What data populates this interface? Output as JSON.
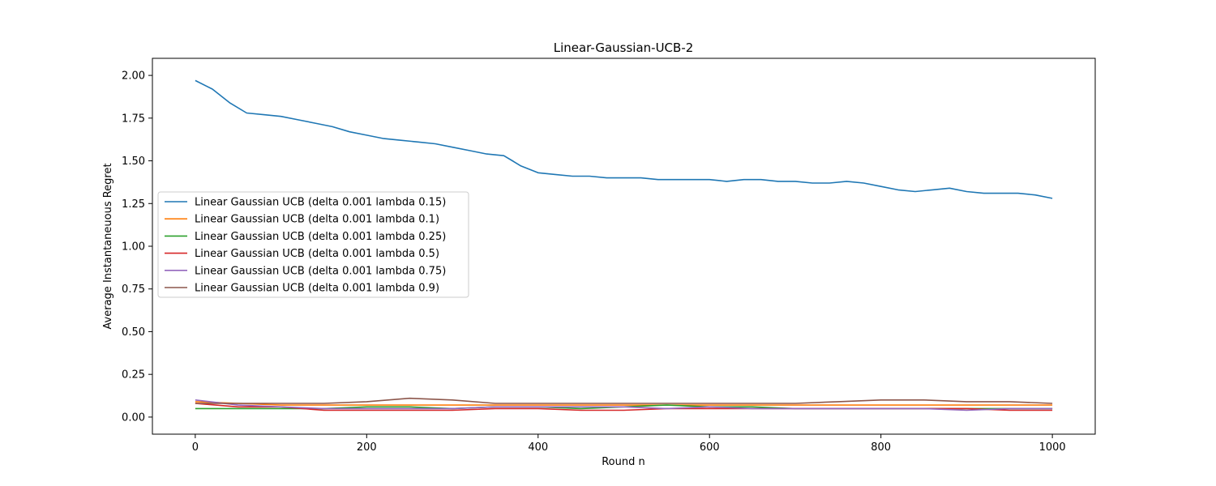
{
  "chart_data": {
    "type": "line",
    "title": "Linear-Gaussian-UCB-2",
    "xlabel": "Round n",
    "ylabel": "Average Instantaneuous Regret",
    "xlim": [
      -50,
      1050
    ],
    "ylim": [
      -0.1,
      2.1
    ],
    "xticks": [
      0,
      200,
      400,
      600,
      800,
      1000
    ],
    "yticks": [
      0.0,
      0.25,
      0.5,
      0.75,
      1.0,
      1.25,
      1.5,
      1.75,
      2.0
    ],
    "xtick_labels": [
      "0",
      "200",
      "400",
      "600",
      "800",
      "1000"
    ],
    "ytick_labels": [
      "0.00",
      "0.25",
      "0.50",
      "0.75",
      "1.00",
      "1.25",
      "1.50",
      "1.75",
      "2.00"
    ],
    "grid": false,
    "legend_position": "center-left",
    "series": [
      {
        "name": "Linear Gaussian UCB (delta 0.001 lambda 0.15)",
        "color": "#1f77b4",
        "x": [
          0,
          20,
          40,
          60,
          80,
          100,
          120,
          140,
          160,
          180,
          200,
          220,
          240,
          260,
          280,
          300,
          320,
          340,
          360,
          370,
          380,
          400,
          420,
          440,
          460,
          480,
          500,
          520,
          540,
          560,
          580,
          600,
          620,
          640,
          660,
          680,
          700,
          720,
          740,
          760,
          780,
          800,
          820,
          840,
          860,
          880,
          900,
          920,
          940,
          960,
          980,
          1000
        ],
        "y": [
          1.97,
          1.92,
          1.84,
          1.78,
          1.77,
          1.76,
          1.74,
          1.72,
          1.7,
          1.67,
          1.65,
          1.63,
          1.62,
          1.61,
          1.6,
          1.58,
          1.56,
          1.54,
          1.53,
          1.5,
          1.47,
          1.43,
          1.42,
          1.41,
          1.41,
          1.4,
          1.4,
          1.4,
          1.39,
          1.39,
          1.39,
          1.39,
          1.38,
          1.39,
          1.39,
          1.38,
          1.38,
          1.37,
          1.37,
          1.38,
          1.37,
          1.35,
          1.33,
          1.32,
          1.33,
          1.34,
          1.32,
          1.31,
          1.31,
          1.31,
          1.3,
          1.28
        ]
      },
      {
        "name": "Linear Gaussian UCB (delta 0.001 lambda 0.1)",
        "color": "#ff7f0e",
        "x": [
          0,
          50,
          100,
          150,
          200,
          250,
          300,
          350,
          400,
          450,
          500,
          550,
          600,
          650,
          700,
          750,
          800,
          850,
          900,
          950,
          1000
        ],
        "y": [
          0.09,
          0.08,
          0.07,
          0.07,
          0.07,
          0.07,
          0.07,
          0.07,
          0.07,
          0.07,
          0.07,
          0.07,
          0.07,
          0.07,
          0.07,
          0.07,
          0.07,
          0.07,
          0.07,
          0.07,
          0.07
        ]
      },
      {
        "name": "Linear Gaussian UCB (delta 0.001 lambda 0.25)",
        "color": "#2ca02c",
        "x": [
          0,
          50,
          100,
          150,
          200,
          250,
          300,
          350,
          400,
          450,
          500,
          550,
          600,
          650,
          700,
          750,
          800,
          850,
          900,
          950,
          1000
        ],
        "y": [
          0.05,
          0.05,
          0.05,
          0.05,
          0.06,
          0.06,
          0.05,
          0.06,
          0.06,
          0.05,
          0.06,
          0.07,
          0.06,
          0.06,
          0.05,
          0.05,
          0.05,
          0.05,
          0.05,
          0.05,
          0.05
        ]
      },
      {
        "name": "Linear Gaussian UCB (delta 0.001 lambda 0.5)",
        "color": "#d62728",
        "x": [
          0,
          50,
          100,
          150,
          200,
          250,
          300,
          350,
          400,
          450,
          500,
          550,
          600,
          650,
          700,
          750,
          800,
          850,
          900,
          950,
          1000
        ],
        "y": [
          0.08,
          0.06,
          0.06,
          0.04,
          0.04,
          0.04,
          0.04,
          0.05,
          0.05,
          0.04,
          0.04,
          0.05,
          0.05,
          0.05,
          0.05,
          0.05,
          0.05,
          0.05,
          0.05,
          0.04,
          0.04
        ]
      },
      {
        "name": "Linear Gaussian UCB (delta 0.001 lambda 0.75)",
        "color": "#9467bd",
        "x": [
          0,
          50,
          100,
          150,
          200,
          250,
          300,
          350,
          400,
          450,
          500,
          550,
          600,
          650,
          700,
          750,
          800,
          850,
          900,
          950,
          1000
        ],
        "y": [
          0.1,
          0.07,
          0.06,
          0.05,
          0.05,
          0.05,
          0.05,
          0.06,
          0.06,
          0.06,
          0.06,
          0.05,
          0.06,
          0.05,
          0.05,
          0.05,
          0.05,
          0.05,
          0.04,
          0.05,
          0.05
        ]
      },
      {
        "name": "Linear Gaussian UCB (delta 0.001 lambda 0.9)",
        "color": "#8c564b",
        "x": [
          0,
          50,
          100,
          150,
          200,
          250,
          300,
          350,
          400,
          450,
          500,
          550,
          600,
          650,
          700,
          750,
          800,
          850,
          900,
          950,
          1000
        ],
        "y": [
          0.08,
          0.08,
          0.08,
          0.08,
          0.09,
          0.11,
          0.1,
          0.08,
          0.08,
          0.08,
          0.08,
          0.08,
          0.08,
          0.08,
          0.08,
          0.09,
          0.1,
          0.1,
          0.09,
          0.09,
          0.08
        ]
      }
    ]
  }
}
